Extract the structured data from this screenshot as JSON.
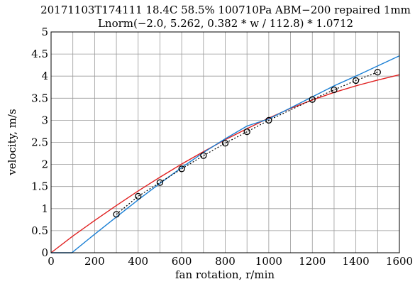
{
  "chart_data": {
    "type": "line",
    "title": "20171103T174111 18.4C 58.5% 100710Pa ABM−200 repaired 1mm",
    "subtitle": "Lnorm(−2.0, 5.262, 0.382 * w / 112.8) * 1.0712",
    "xlabel": "fan rotation, r/min",
    "ylabel": "velocity, m/s",
    "xlim": [
      0,
      1600
    ],
    "ylim": [
      0,
      5
    ],
    "x_ticks": [
      0,
      200,
      400,
      600,
      800,
      1000,
      1200,
      1400,
      1600
    ],
    "y_ticks": [
      0,
      0.5,
      1,
      1.5,
      2,
      2.5,
      3,
      3.5,
      4,
      4.5,
      5
    ],
    "x_tick_labels": [
      "0",
      "200",
      "400",
      "600",
      "800",
      "1000",
      "1200",
      "1400",
      "1600"
    ],
    "y_tick_labels": [
      "0",
      "0.5",
      "1",
      "1.5",
      "2",
      "2.5",
      "3",
      "3.5",
      "4",
      "4.5",
      "5"
    ],
    "grid": true,
    "grid_minor_x_step": 100,
    "series": [
      {
        "style": "markers-dotted",
        "color": "#000000",
        "x": [
          300,
          400,
          500,
          600,
          700,
          800,
          900,
          1000,
          1200,
          1300,
          1400,
          1500
        ],
        "y": [
          0.87,
          1.28,
          1.59,
          1.9,
          2.2,
          2.48,
          2.74,
          3.0,
          3.47,
          3.69,
          3.9,
          4.09
        ]
      },
      {
        "style": "line",
        "color": "#e02020",
        "x": [
          0,
          100,
          200,
          300,
          400,
          500,
          600,
          700,
          800,
          900,
          1000,
          1100,
          1200,
          1300,
          1400,
          1500,
          1600
        ],
        "y": [
          0.0,
          0.38,
          0.73,
          1.07,
          1.4,
          1.71,
          2.01,
          2.29,
          2.56,
          2.81,
          3.05,
          3.27,
          3.46,
          3.63,
          3.78,
          3.91,
          4.03
        ]
      },
      {
        "style": "line",
        "color": "#1a7fd4",
        "x": [
          0,
          95,
          200,
          300,
          400,
          500,
          600,
          700,
          800,
          900,
          1000,
          1100,
          1200,
          1300,
          1400,
          1500,
          1600
        ],
        "y": [
          0.0,
          0.0,
          0.42,
          0.81,
          1.2,
          1.57,
          1.93,
          2.27,
          2.58,
          2.87,
          3.03,
          3.28,
          3.53,
          3.78,
          4.0,
          4.23,
          4.46
        ]
      }
    ]
  }
}
